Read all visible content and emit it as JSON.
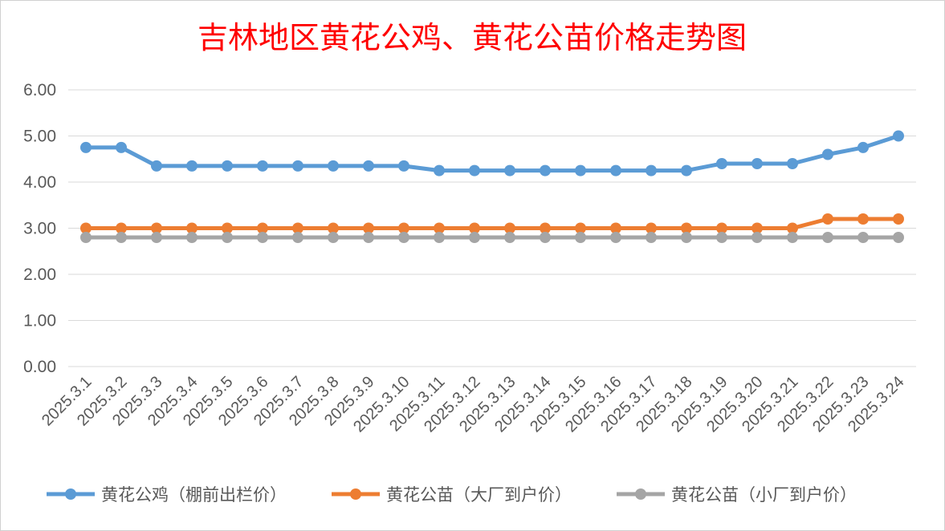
{
  "chart_data": {
    "type": "line",
    "title": "吉林地区黄花公鸡、黄花公苗价格走势图",
    "xlabel": "",
    "ylabel": "",
    "categories": [
      "2025.3.1",
      "2025.3.2",
      "2025.3.3",
      "2025.3.4",
      "2025.3.5",
      "2025.3.6",
      "2025.3.7",
      "2025.3.8",
      "2025.3.9",
      "2025.3.10",
      "2025.3.11",
      "2025.3.12",
      "2025.3.13",
      "2025.3.14",
      "2025.3.15",
      "2025.3.16",
      "2025.3.17",
      "2025.3.18",
      "2025.3.19",
      "2025.3.20",
      "2025.3.21",
      "2025.3.22",
      "2025.3.23",
      "2025.3.24"
    ],
    "ylim": [
      0,
      6
    ],
    "yticks": [
      "0.00",
      "1.00",
      "2.00",
      "3.00",
      "4.00",
      "5.00",
      "6.00"
    ],
    "grid": true,
    "legend_position": "bottom",
    "series": [
      {
        "name": "黄花公鸡（棚前出栏价）",
        "color": "#5b9bd5",
        "values": [
          4.75,
          4.75,
          4.35,
          4.35,
          4.35,
          4.35,
          4.35,
          4.35,
          4.35,
          4.35,
          4.25,
          4.25,
          4.25,
          4.25,
          4.25,
          4.25,
          4.25,
          4.25,
          4.4,
          4.4,
          4.4,
          4.6,
          4.75,
          5.0
        ]
      },
      {
        "name": "黄花公苗（大厂到户价）",
        "color": "#ed7d31",
        "values": [
          3.0,
          3.0,
          3.0,
          3.0,
          3.0,
          3.0,
          3.0,
          3.0,
          3.0,
          3.0,
          3.0,
          3.0,
          3.0,
          3.0,
          3.0,
          3.0,
          3.0,
          3.0,
          3.0,
          3.0,
          3.0,
          3.2,
          3.2,
          3.2
        ]
      },
      {
        "name": "黄花公苗（小厂到户价）",
        "color": "#a5a5a5",
        "values": [
          2.8,
          2.8,
          2.8,
          2.8,
          2.8,
          2.8,
          2.8,
          2.8,
          2.8,
          2.8,
          2.8,
          2.8,
          2.8,
          2.8,
          2.8,
          2.8,
          2.8,
          2.8,
          2.8,
          2.8,
          2.8,
          2.8,
          2.8,
          2.8
        ]
      }
    ]
  }
}
